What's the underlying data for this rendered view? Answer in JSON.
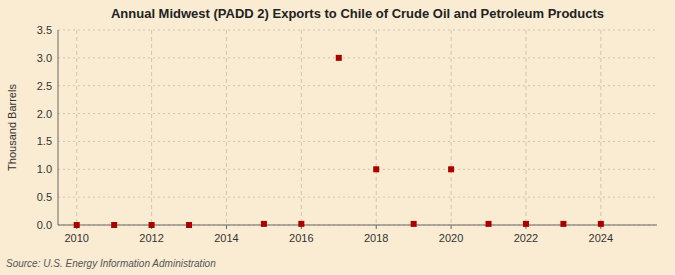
{
  "chart_data": {
    "type": "scatter",
    "title": "Annual Midwest (PADD 2) Exports to Chile of Crude Oil and Petroleum Products",
    "ylabel": "Thousand Barrels",
    "source": "Source: U.S. Energy Information Administration",
    "x": [
      2010,
      2011,
      2012,
      2013,
      2015,
      2016,
      2017,
      2018,
      2019,
      2020,
      2021,
      2022,
      2023,
      2024
    ],
    "values": [
      0,
      0,
      0,
      0,
      0.02,
      0.02,
      3.0,
      1.0,
      0.02,
      1.0,
      0.02,
      0.02,
      0.02,
      0.02
    ],
    "color": "#aa0000",
    "marker": "square",
    "xlim": [
      2009.5,
      2025.5
    ],
    "ylim": [
      0,
      3.5
    ],
    "xticks": [
      2010,
      2012,
      2014,
      2016,
      2018,
      2020,
      2022,
      2024
    ],
    "yticks": [
      {
        "value": 0.0,
        "label": "0.0"
      },
      0.5,
      {
        "value": 1.0,
        "label": "1.0"
      },
      1.5,
      {
        "value": 2.0,
        "label": "2.0"
      },
      2.5,
      {
        "value": 3.0,
        "label": "3.0"
      },
      3.5
    ],
    "grid": true
  }
}
